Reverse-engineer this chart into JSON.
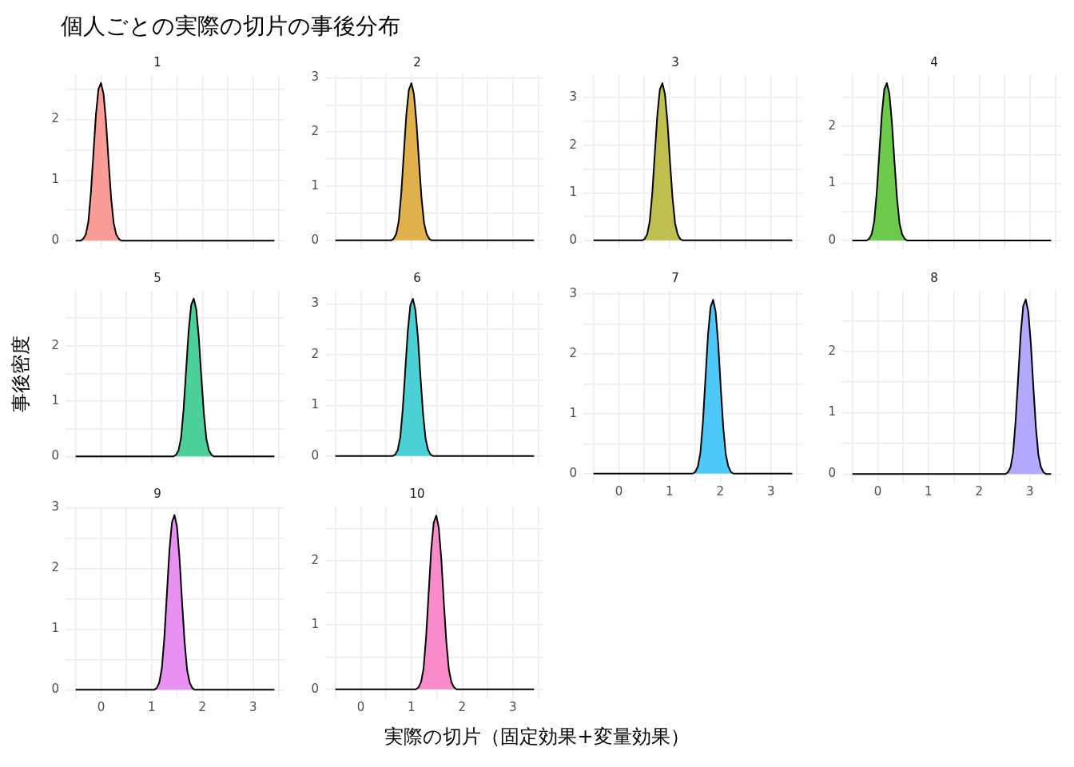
{
  "chart_data": [
    {
      "type": "area",
      "title": "1",
      "annotations": [
        "個人ごとの実際の切片の事後分布"
      ],
      "x": [
        -0.5,
        -0.4,
        -0.35,
        -0.3,
        -0.25,
        -0.2,
        -0.15,
        -0.1,
        -0.05,
        0,
        0.05,
        0.1,
        0.15,
        0.2,
        0.25,
        0.3,
        0.35,
        0.4,
        3.42
      ],
      "series": [
        {
          "color": "#f99d96",
          "values": [
            0,
            0,
            0.03,
            0.1,
            0.31,
            0.78,
            1.43,
            2.08,
            2.5,
            2.6,
            2.42,
            1.95,
            1.3,
            0.7,
            0.29,
            0.1,
            0.03,
            0,
            0
          ]
        }
      ],
      "xlim": [
        -0.7,
        3.62
      ],
      "xticks": [
        {
          "value": -0.5,
          "label": null
        },
        0,
        {
          "value": 0.5,
          "label": null
        },
        1,
        {
          "value": 1.5,
          "label": null
        },
        2,
        {
          "value": 2.5,
          "label": null
        },
        3,
        {
          "value": 3.5,
          "label": null
        }
      ],
      "ylim": [
        -0.13,
        2.73
      ],
      "yticks": [
        0,
        {
          "value": 0.5,
          "label": null
        },
        1,
        {
          "value": 1.5,
          "label": null
        },
        2,
        {
          "value": 2.5,
          "label": null
        }
      ],
      "tick_labels": "y",
      "grid": true,
      "legend": false,
      "marker": "none"
    },
    {
      "type": "area",
      "title": "2",
      "x": [
        -0.5,
        0.6,
        0.65,
        0.7,
        0.75,
        0.8,
        0.85,
        0.9,
        0.95,
        1,
        1.05,
        1.1,
        1.15,
        1.2,
        1.25,
        1.3,
        1.35,
        1.4,
        3.42
      ],
      "series": [
        {
          "color": "#e0b04a",
          "values": [
            0,
            0,
            0.03,
            0.12,
            0.35,
            0.87,
            1.6,
            2.32,
            2.78,
            2.9,
            2.7,
            2.18,
            1.45,
            0.78,
            0.32,
            0.12,
            0.03,
            0,
            0
          ]
        }
      ],
      "xlim": [
        -0.7,
        3.62
      ],
      "xticks": [
        {
          "value": -0.5,
          "label": null
        },
        0,
        {
          "value": 0.5,
          "label": null
        },
        1,
        {
          "value": 1.5,
          "label": null
        },
        2,
        {
          "value": 2.5,
          "label": null
        },
        3,
        {
          "value": 3.5,
          "label": null
        }
      ],
      "ylim": [
        -0.15,
        3.05
      ],
      "yticks": [
        0,
        {
          "value": 0.5,
          "label": null
        },
        1,
        {
          "value": 1.5,
          "label": null
        },
        2,
        {
          "value": 2.5,
          "label": null
        },
        3
      ],
      "tick_labels": "y",
      "grid": true,
      "legend": false,
      "marker": "none"
    },
    {
      "type": "area",
      "title": "3",
      "x": [
        -0.5,
        0.46,
        0.51,
        0.56,
        0.61,
        0.66,
        0.71,
        0.76,
        0.81,
        0.86,
        0.91,
        0.96,
        1.01,
        1.06,
        1.11,
        1.16,
        1.21,
        1.26,
        3.42
      ],
      "series": [
        {
          "color": "#bfbf4d",
          "values": [
            0,
            0,
            0.03,
            0.13,
            0.4,
            0.99,
            1.82,
            2.64,
            3.17,
            3.3,
            3.07,
            2.48,
            1.65,
            0.89,
            0.36,
            0.13,
            0.03,
            0,
            0
          ]
        }
      ],
      "xlim": [
        -0.7,
        3.62
      ],
      "xticks": [
        {
          "value": -0.5,
          "label": null
        },
        0,
        {
          "value": 0.5,
          "label": null
        },
        1,
        {
          "value": 1.5,
          "label": null
        },
        2,
        {
          "value": 2.5,
          "label": null
        },
        3,
        {
          "value": 3.5,
          "label": null
        }
      ],
      "ylim": [
        -0.17,
        3.47
      ],
      "yticks": [
        0,
        {
          "value": 0.5,
          "label": null
        },
        1,
        {
          "value": 1.5,
          "label": null
        },
        2,
        {
          "value": 2.5,
          "label": null
        },
        3
      ],
      "tick_labels": "y",
      "grid": true,
      "legend": false,
      "marker": "none"
    },
    {
      "type": "area",
      "title": "4",
      "x": [
        -0.5,
        -0.22,
        -0.17,
        -0.12,
        -0.07,
        -0.02,
        0.03,
        0.08,
        0.13,
        0.18,
        0.23,
        0.28,
        0.33,
        0.38,
        0.43,
        0.48,
        0.53,
        0.58,
        3.42
      ],
      "series": [
        {
          "color": "#6dca4a",
          "values": [
            0,
            0,
            0.03,
            0.11,
            0.33,
            0.83,
            1.51,
            2.2,
            2.64,
            2.75,
            2.56,
            2.06,
            1.38,
            0.74,
            0.3,
            0.11,
            0.03,
            0,
            0
          ]
        }
      ],
      "xlim": [
        -0.7,
        3.62
      ],
      "xticks": [
        {
          "value": -0.5,
          "label": null
        },
        0,
        {
          "value": 0.5,
          "label": null
        },
        1,
        {
          "value": 1.5,
          "label": null
        },
        2,
        {
          "value": 2.5,
          "label": null
        },
        3,
        {
          "value": 3.5,
          "label": null
        }
      ],
      "ylim": [
        -0.14,
        2.89
      ],
      "yticks": [
        0,
        {
          "value": 0.5,
          "label": null
        },
        1,
        {
          "value": 1.5,
          "label": null
        },
        2,
        {
          "value": 2.5,
          "label": null
        }
      ],
      "tick_labels": "y",
      "grid": true,
      "legend": false,
      "marker": "none"
    },
    {
      "type": "area",
      "title": "5",
      "ylabel": "事後密度",
      "x": [
        -0.5,
        1.43,
        1.48,
        1.53,
        1.58,
        1.63,
        1.68,
        1.73,
        1.78,
        1.83,
        1.88,
        1.93,
        1.98,
        2.03,
        2.08,
        2.13,
        2.18,
        2.23,
        3.42
      ],
      "series": [
        {
          "color": "#4ccf9a",
          "values": [
            0,
            0,
            0.03,
            0.11,
            0.34,
            0.86,
            1.57,
            2.28,
            2.74,
            2.85,
            2.65,
            2.14,
            1.43,
            0.77,
            0.31,
            0.11,
            0.03,
            0,
            0
          ]
        }
      ],
      "xlim": [
        -0.7,
        3.62
      ],
      "xticks": [
        {
          "value": -0.5,
          "label": null
        },
        0,
        {
          "value": 0.5,
          "label": null
        },
        1,
        {
          "value": 1.5,
          "label": null
        },
        2,
        {
          "value": 2.5,
          "label": null
        },
        3,
        {
          "value": 3.5,
          "label": null
        }
      ],
      "ylim": [
        -0.14,
        2.99
      ],
      "yticks": [
        0,
        {
          "value": 0.5,
          "label": null
        },
        1,
        {
          "value": 1.5,
          "label": null
        },
        2,
        {
          "value": 2.5,
          "label": null
        }
      ],
      "tick_labels": "y",
      "grid": true,
      "legend": false,
      "marker": "none"
    },
    {
      "type": "area",
      "title": "6",
      "x": [
        -0.5,
        0.63,
        0.68,
        0.73,
        0.78,
        0.83,
        0.88,
        0.93,
        0.98,
        1.03,
        1.08,
        1.13,
        1.18,
        1.23,
        1.28,
        1.33,
        1.38,
        1.43,
        3.42
      ],
      "series": [
        {
          "color": "#4bd0d4",
          "values": [
            0,
            0,
            0.03,
            0.12,
            0.37,
            0.93,
            1.71,
            2.48,
            2.98,
            3.1,
            2.88,
            2.33,
            1.55,
            0.84,
            0.34,
            0.12,
            0.03,
            0,
            0
          ]
        }
      ],
      "xlim": [
        -0.7,
        3.62
      ],
      "xticks": [
        {
          "value": -0.5,
          "label": null
        },
        0,
        {
          "value": 0.5,
          "label": null
        },
        1,
        {
          "value": 1.5,
          "label": null
        },
        2,
        {
          "value": 2.5,
          "label": null
        },
        3,
        {
          "value": 3.5,
          "label": null
        }
      ],
      "ylim": [
        -0.16,
        3.26
      ],
      "yticks": [
        0,
        {
          "value": 0.5,
          "label": null
        },
        1,
        {
          "value": 1.5,
          "label": null
        },
        2,
        {
          "value": 2.5,
          "label": null
        },
        3
      ],
      "tick_labels": "y",
      "grid": true,
      "legend": false,
      "marker": "none"
    },
    {
      "type": "area",
      "title": "7",
      "x": [
        -0.5,
        1.46,
        1.51,
        1.56,
        1.61,
        1.66,
        1.71,
        1.76,
        1.81,
        1.86,
        1.91,
        1.96,
        2.01,
        2.06,
        2.11,
        2.16,
        2.21,
        2.26,
        3.42
      ],
      "series": [
        {
          "color": "#4ec8f7",
          "values": [
            0,
            0,
            0.03,
            0.12,
            0.35,
            0.87,
            1.6,
            2.32,
            2.78,
            2.9,
            2.7,
            2.18,
            1.45,
            0.78,
            0.32,
            0.12,
            0.03,
            0,
            0
          ]
        }
      ],
      "xlim": [
        -0.7,
        3.62
      ],
      "xticks": [
        {
          "value": -0.5,
          "label": null
        },
        0,
        {
          "value": 0.5,
          "label": null
        },
        1,
        {
          "value": 1.5,
          "label": null
        },
        2,
        {
          "value": 2.5,
          "label": null
        },
        3,
        {
          "value": 3.5,
          "label": null
        }
      ],
      "ylim": [
        -0.15,
        3.05
      ],
      "yticks": [
        0,
        {
          "value": 0.5,
          "label": null
        },
        1,
        {
          "value": 1.5,
          "label": null
        },
        2,
        {
          "value": 2.5,
          "label": null
        },
        3
      ],
      "grid": true,
      "legend": false,
      "marker": "none"
    },
    {
      "type": "area",
      "title": "8",
      "x": [
        -0.5,
        2.52,
        2.57,
        2.62,
        2.67,
        2.72,
        2.77,
        2.82,
        2.87,
        2.92,
        2.97,
        3.02,
        3.07,
        3.12,
        3.17,
        3.22,
        3.27,
        3.32,
        3.42
      ],
      "series": [
        {
          "color": "#b0a9fc",
          "values": [
            0,
            0,
            0.03,
            0.11,
            0.34,
            0.86,
            1.57,
            2.28,
            2.74,
            2.85,
            2.65,
            2.14,
            1.43,
            0.77,
            0.31,
            0.11,
            0.03,
            0,
            0
          ]
        }
      ],
      "xlim": [
        -0.7,
        3.62
      ],
      "xticks": [
        {
          "value": -0.5,
          "label": null
        },
        0,
        {
          "value": 0.5,
          "label": null
        },
        1,
        {
          "value": 1.5,
          "label": null
        },
        2,
        {
          "value": 2.5,
          "label": null
        },
        3,
        {
          "value": 3.5,
          "label": null
        }
      ],
      "ylim": [
        -0.14,
        2.99
      ],
      "yticks": [
        0,
        {
          "value": 0.5,
          "label": null
        },
        1,
        {
          "value": 1.5,
          "label": null
        },
        2,
        {
          "value": 2.5,
          "label": null
        }
      ],
      "grid": true,
      "legend": false,
      "marker": "none"
    },
    {
      "type": "area",
      "title": "9",
      "x": [
        -0.5,
        1.05,
        1.1,
        1.15,
        1.2,
        1.25,
        1.3,
        1.35,
        1.4,
        1.45,
        1.5,
        1.55,
        1.6,
        1.65,
        1.7,
        1.75,
        1.8,
        1.85,
        3.42
      ],
      "series": [
        {
          "color": "#e792f3",
          "values": [
            0,
            0,
            0.03,
            0.12,
            0.35,
            0.86,
            1.58,
            2.3,
            2.76,
            2.88,
            2.68,
            2.16,
            1.44,
            0.78,
            0.32,
            0.12,
            0.03,
            0,
            0
          ]
        }
      ],
      "xlim": [
        -0.7,
        3.62
      ],
      "xticks": [
        {
          "value": -0.5,
          "label": null
        },
        0,
        {
          "value": 0.5,
          "label": null
        },
        1,
        {
          "value": 1.5,
          "label": null
        },
        2,
        {
          "value": 2.5,
          "label": null
        },
        3,
        {
          "value": 3.5,
          "label": null
        }
      ],
      "ylim": [
        -0.14,
        3.02
      ],
      "yticks": [
        0,
        {
          "value": 0.5,
          "label": null
        },
        1,
        {
          "value": 1.5,
          "label": null
        },
        2,
        {
          "value": 2.5,
          "label": null
        },
        3
      ],
      "grid": true,
      "legend": false,
      "marker": "none"
    },
    {
      "type": "area",
      "title": "10",
      "xlabel": "実際の切片（固定効果+変量効果）",
      "x": [
        -0.5,
        1.09,
        1.14,
        1.19,
        1.24,
        1.29,
        1.34,
        1.39,
        1.44,
        1.49,
        1.54,
        1.59,
        1.64,
        1.69,
        1.74,
        1.79,
        1.84,
        1.89,
        3.42
      ],
      "series": [
        {
          "color": "#fb8ccb",
          "values": [
            0,
            0,
            0.03,
            0.11,
            0.32,
            0.81,
            1.49,
            2.16,
            2.59,
            2.7,
            2.51,
            2.03,
            1.35,
            0.73,
            0.3,
            0.11,
            0.03,
            0,
            0
          ]
        }
      ],
      "xlim": [
        -0.7,
        3.62
      ],
      "xticks": [
        {
          "value": -0.5,
          "label": null
        },
        0,
        {
          "value": 0.5,
          "label": null
        },
        1,
        {
          "value": 1.5,
          "label": null
        },
        2,
        {
          "value": 2.5,
          "label": null
        },
        3,
        {
          "value": 3.5,
          "label": null
        }
      ],
      "ylim": [
        -0.14,
        2.84
      ],
      "yticks": [
        0,
        {
          "value": 0.5,
          "label": null
        },
        1,
        {
          "value": 1.5,
          "label": null
        },
        2,
        {
          "value": 2.5,
          "label": null
        }
      ],
      "grid": true,
      "legend": false,
      "marker": "none"
    }
  ]
}
